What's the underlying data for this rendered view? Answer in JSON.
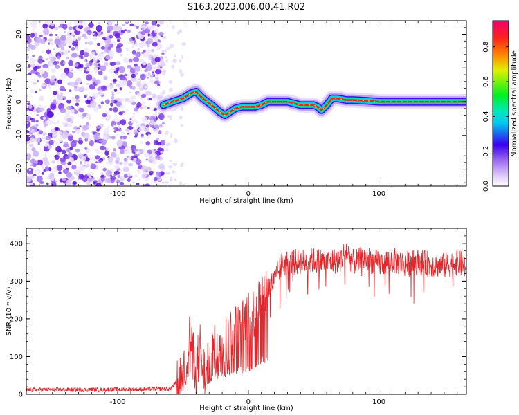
{
  "title": "S163.2023.006.00.41.R02",
  "colors": {
    "snr_line": "#e8262a",
    "ridge_core": "#e8262a",
    "noise_dark": "#7b1fe0",
    "noise_light": "#d8c4f6"
  },
  "chart_data": [
    {
      "type": "heatmap",
      "xlabel": "Height of straight line (km)",
      "ylabel": "Frequency (Hz)",
      "xlim": [
        -170,
        167
      ],
      "ylim": [
        -25,
        24
      ],
      "xticks": [
        -100,
        0,
        100
      ],
      "yticks": [
        -20,
        -10,
        0,
        10,
        20
      ],
      "grid": false,
      "colorbar": {
        "label": "Normalized spectral amplitude",
        "range": [
          0.0,
          0.95
        ],
        "ticks": [
          0.0,
          0.2,
          0.4,
          0.6,
          0.8
        ]
      },
      "noise_region_x": [
        -170,
        -65
      ],
      "ridge": {
        "x": [
          -65,
          -58,
          -50,
          -44,
          -40,
          -35,
          -28,
          -22,
          -18,
          -14,
          -10,
          -5,
          0,
          5,
          10,
          15,
          20,
          30,
          40,
          50,
          53,
          56,
          60,
          64,
          68,
          75,
          80,
          90,
          100,
          120,
          140,
          167
        ],
        "y": [
          -1,
          0,
          1,
          2.5,
          3,
          1,
          -1,
          -3,
          -4,
          -3,
          -2,
          -1.5,
          -1.5,
          -1.5,
          -1,
          0,
          0,
          0,
          -1,
          -1,
          -1.5,
          -2.5,
          -1,
          1,
          1,
          0.5,
          0.5,
          0.3,
          0,
          0,
          0,
          0
        ]
      }
    },
    {
      "type": "line",
      "xlabel": "Height of straight line (km)",
      "ylabel": "SNR (10 * v/v)",
      "xlim": [
        -170,
        167
      ],
      "ylim": [
        0,
        440
      ],
      "xticks": [
        -100,
        0,
        100
      ],
      "yticks": [
        0,
        100,
        200,
        300,
        400
      ],
      "grid": false,
      "series": [
        {
          "x": [
            -170,
            -120,
            -60,
            -52,
            -48,
            -45,
            -42,
            -40,
            -37,
            -35,
            -32,
            -30,
            -25,
            -20,
            -15,
            -10,
            -5,
            0,
            5,
            10,
            15,
            20,
            25,
            30,
            40,
            50,
            60,
            70,
            75,
            80,
            90,
            100,
            110,
            120,
            130,
            140,
            150,
            160,
            167
          ],
          "values": [
            12,
            12,
            14,
            40,
            80,
            150,
            100,
            60,
            130,
            70,
            50,
            90,
            120,
            140,
            150,
            170,
            180,
            200,
            220,
            260,
            280,
            300,
            340,
            350,
            350,
            355,
            350,
            355,
            380,
            350,
            360,
            345,
            355,
            345,
            350,
            345,
            340,
            350,
            340
          ]
        }
      ]
    }
  ]
}
